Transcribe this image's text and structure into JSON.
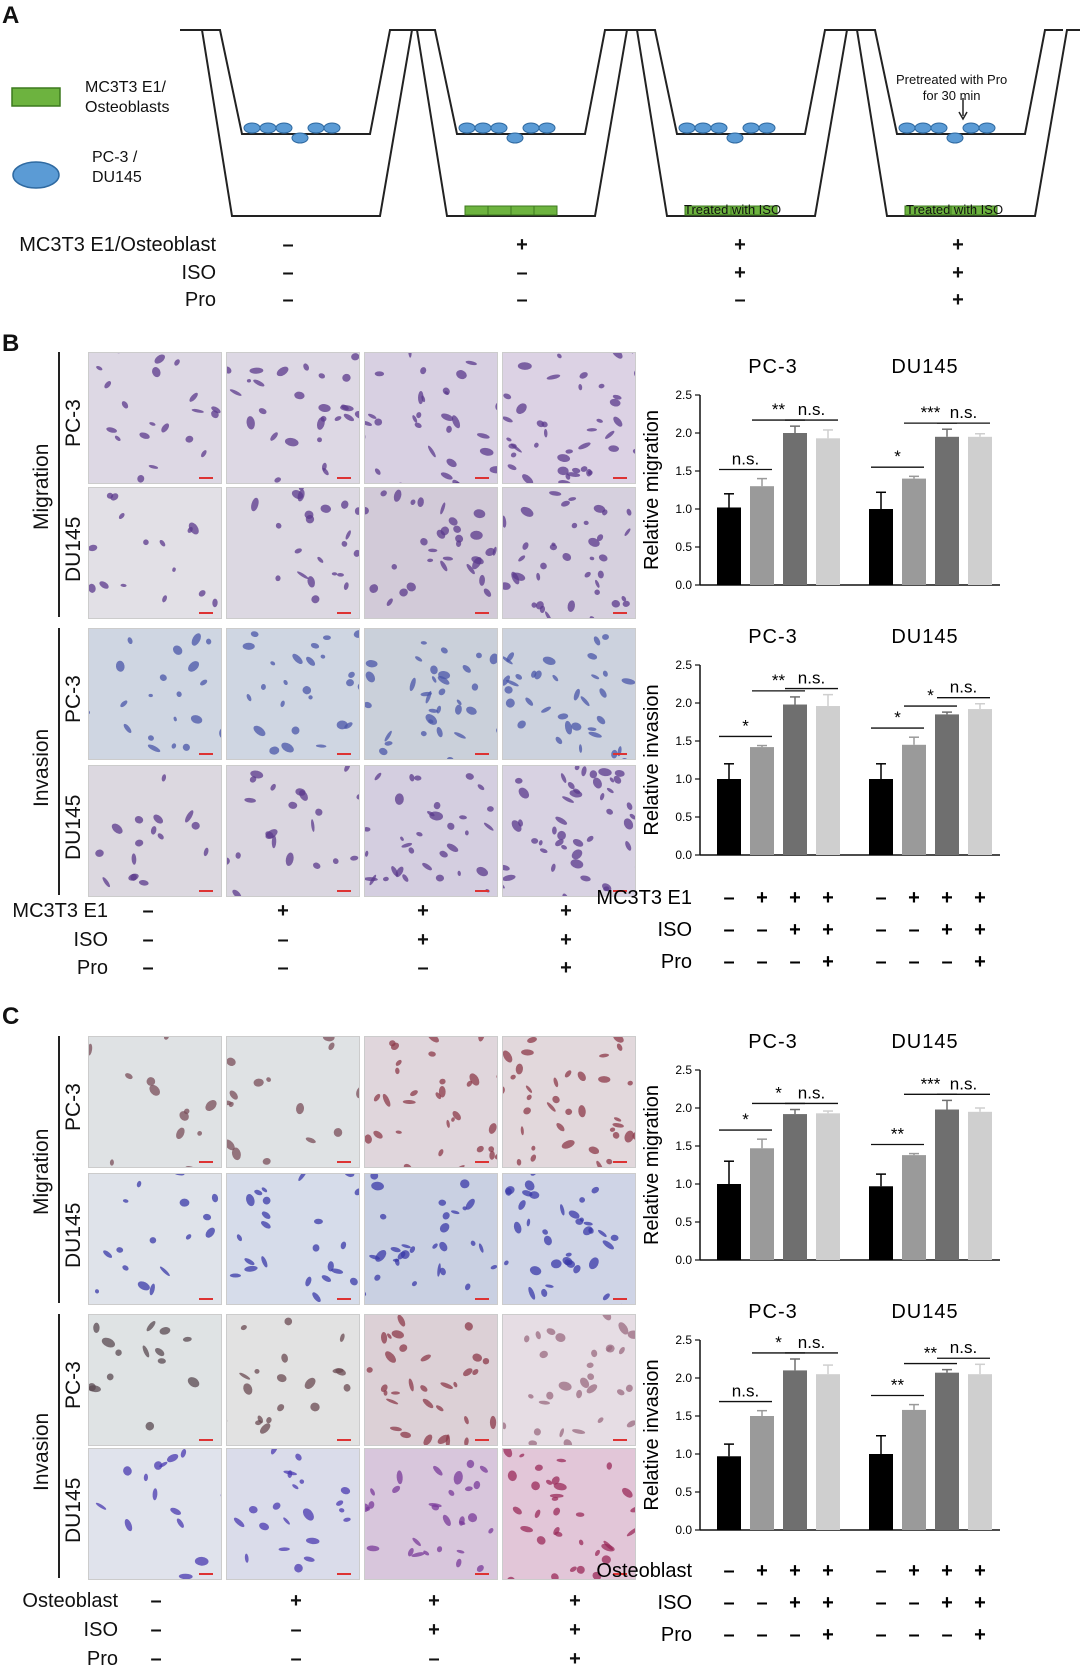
{
  "panelA": {
    "letter": "A",
    "legend": [
      {
        "label": "MC3T3 E1/\nOsteoblasts",
        "color": "#6db33f",
        "icon": "green-rectangle"
      },
      {
        "label": "PC-3 /\nDU145",
        "color": "#5b9bd5",
        "icon": "blue-ellipse"
      }
    ],
    "annotations": {
      "pretreated": "Pretreated with Pro\nfor 30 min",
      "treated": "Treated with ISO"
    },
    "conditions": [
      {
        "label": "MC3T3 E1/Osteoblast",
        "signs": [
          "–",
          "+",
          "+",
          "+"
        ]
      },
      {
        "label": "ISO",
        "signs": [
          "–",
          "–",
          "+",
          "+"
        ]
      },
      {
        "label": "Pro",
        "signs": [
          "–",
          "–",
          "–",
          "+"
        ]
      }
    ]
  },
  "panelB": {
    "letter": "B",
    "group_labels": [
      "Migration",
      "Invasion"
    ],
    "row_labels": [
      "PC-3",
      "DU145",
      "PC-3",
      "DU145"
    ],
    "conditions": [
      {
        "label": "MC3T3 E1",
        "signs": [
          "–",
          "+",
          "+",
          "+"
        ]
      },
      {
        "label": "ISO",
        "signs": [
          "–",
          "–",
          "+",
          "+"
        ]
      },
      {
        "label": "Pro",
        "signs": [
          "–",
          "–",
          "–",
          "+"
        ]
      }
    ],
    "chart_conditions": [
      {
        "label": "MC3T3 E1",
        "signs": [
          "–",
          "+",
          "+",
          "+",
          "–",
          "+",
          "+",
          "+"
        ]
      },
      {
        "label": "ISO",
        "signs": [
          "–",
          "–",
          "+",
          "+",
          "–",
          "–",
          "+",
          "+"
        ]
      },
      {
        "label": "Pro",
        "signs": [
          "–",
          "–",
          "–",
          "+",
          "–",
          "–",
          "–",
          "+"
        ]
      }
    ]
  },
  "panelC": {
    "letter": "C",
    "group_labels": [
      "Migration",
      "Invasion"
    ],
    "row_labels": [
      "PC-3",
      "DU145",
      "PC-3",
      "DU145"
    ],
    "conditions": [
      {
        "label": "Osteoblast",
        "signs": [
          "–",
          "+",
          "+",
          "+"
        ]
      },
      {
        "label": "ISO",
        "signs": [
          "–",
          "–",
          "+",
          "+"
        ]
      },
      {
        "label": "Pro",
        "signs": [
          "–",
          "–",
          "–",
          "+"
        ]
      }
    ],
    "chart_conditions": [
      {
        "label": "Osteoblast",
        "signs": [
          "–",
          "+",
          "+",
          "+",
          "–",
          "+",
          "+",
          "+"
        ]
      },
      {
        "label": "ISO",
        "signs": [
          "–",
          "–",
          "+",
          "+",
          "–",
          "–",
          "+",
          "+"
        ]
      },
      {
        "label": "Pro",
        "signs": [
          "–",
          "–",
          "–",
          "+",
          "–",
          "–",
          "–",
          "+"
        ]
      }
    ]
  },
  "bar_colors": [
    "#000000",
    "#9a9a9a",
    "#6f6f6f",
    "#cfcfcf"
  ],
  "chart_data": [
    {
      "type": "bar",
      "ylabel": "Relative migration",
      "ylim": [
        0,
        2.5
      ],
      "yticks": [
        "0.0",
        "0.5",
        "1.0",
        "1.5",
        "2.0",
        "2.5"
      ],
      "groups": [
        {
          "title": "PC-3",
          "values": [
            1.02,
            1.3,
            2.0,
            1.93
          ],
          "errors": [
            0.18,
            0.1,
            0.09,
            0.11
          ],
          "sig": [
            "n.s.",
            "**",
            "n.s."
          ]
        },
        {
          "title": "DU145",
          "values": [
            1.0,
            1.4,
            1.95,
            1.95
          ],
          "errors": [
            0.22,
            0.03,
            0.1,
            0.04
          ],
          "sig": [
            "*",
            "***",
            "n.s."
          ]
        }
      ]
    },
    {
      "type": "bar",
      "ylabel": "Relative invasion",
      "ylim": [
        0,
        2.5
      ],
      "yticks": [
        "0.0",
        "0.5",
        "1.0",
        "1.5",
        "2.0",
        "2.5"
      ],
      "groups": [
        {
          "title": "PC-3",
          "values": [
            1.0,
            1.42,
            1.98,
            1.96
          ],
          "errors": [
            0.2,
            0.02,
            0.1,
            0.15
          ],
          "sig": [
            "*",
            "**",
            "n.s."
          ]
        },
        {
          "title": "DU145",
          "values": [
            1.0,
            1.45,
            1.85,
            1.92
          ],
          "errors": [
            0.2,
            0.1,
            0.03,
            0.07
          ],
          "sig": [
            "*",
            "*",
            "n.s."
          ]
        }
      ]
    },
    {
      "type": "bar",
      "ylabel": "Relative migration",
      "ylim": [
        0,
        2.5
      ],
      "yticks": [
        "0.0",
        "0.5",
        "1.0",
        "1.5",
        "2.0",
        "2.5"
      ],
      "groups": [
        {
          "title": "PC-3",
          "values": [
            1.0,
            1.47,
            1.92,
            1.93
          ],
          "errors": [
            0.3,
            0.12,
            0.06,
            0.03
          ],
          "sig": [
            "*",
            "*",
            "n.s."
          ]
        },
        {
          "title": "DU145",
          "values": [
            0.97,
            1.38,
            1.98,
            1.95
          ],
          "errors": [
            0.16,
            0.02,
            0.12,
            0.05
          ],
          "sig": [
            "**",
            "***",
            "n.s."
          ]
        }
      ]
    },
    {
      "type": "bar",
      "ylabel": "Relative invasion",
      "ylim": [
        0,
        2.5
      ],
      "yticks": [
        "0.0",
        "0.5",
        "1.0",
        "1.5",
        "2.0",
        "2.5"
      ],
      "groups": [
        {
          "title": "PC-3",
          "values": [
            0.97,
            1.5,
            2.1,
            2.05
          ],
          "errors": [
            0.16,
            0.07,
            0.15,
            0.12
          ],
          "sig": [
            "n.s.",
            "*",
            "n.s."
          ]
        },
        {
          "title": "DU145",
          "values": [
            1.0,
            1.58,
            2.07,
            2.05
          ],
          "errors": [
            0.24,
            0.07,
            0.04,
            0.13
          ],
          "sig": [
            "**",
            "**",
            "n.s."
          ]
        }
      ]
    }
  ]
}
